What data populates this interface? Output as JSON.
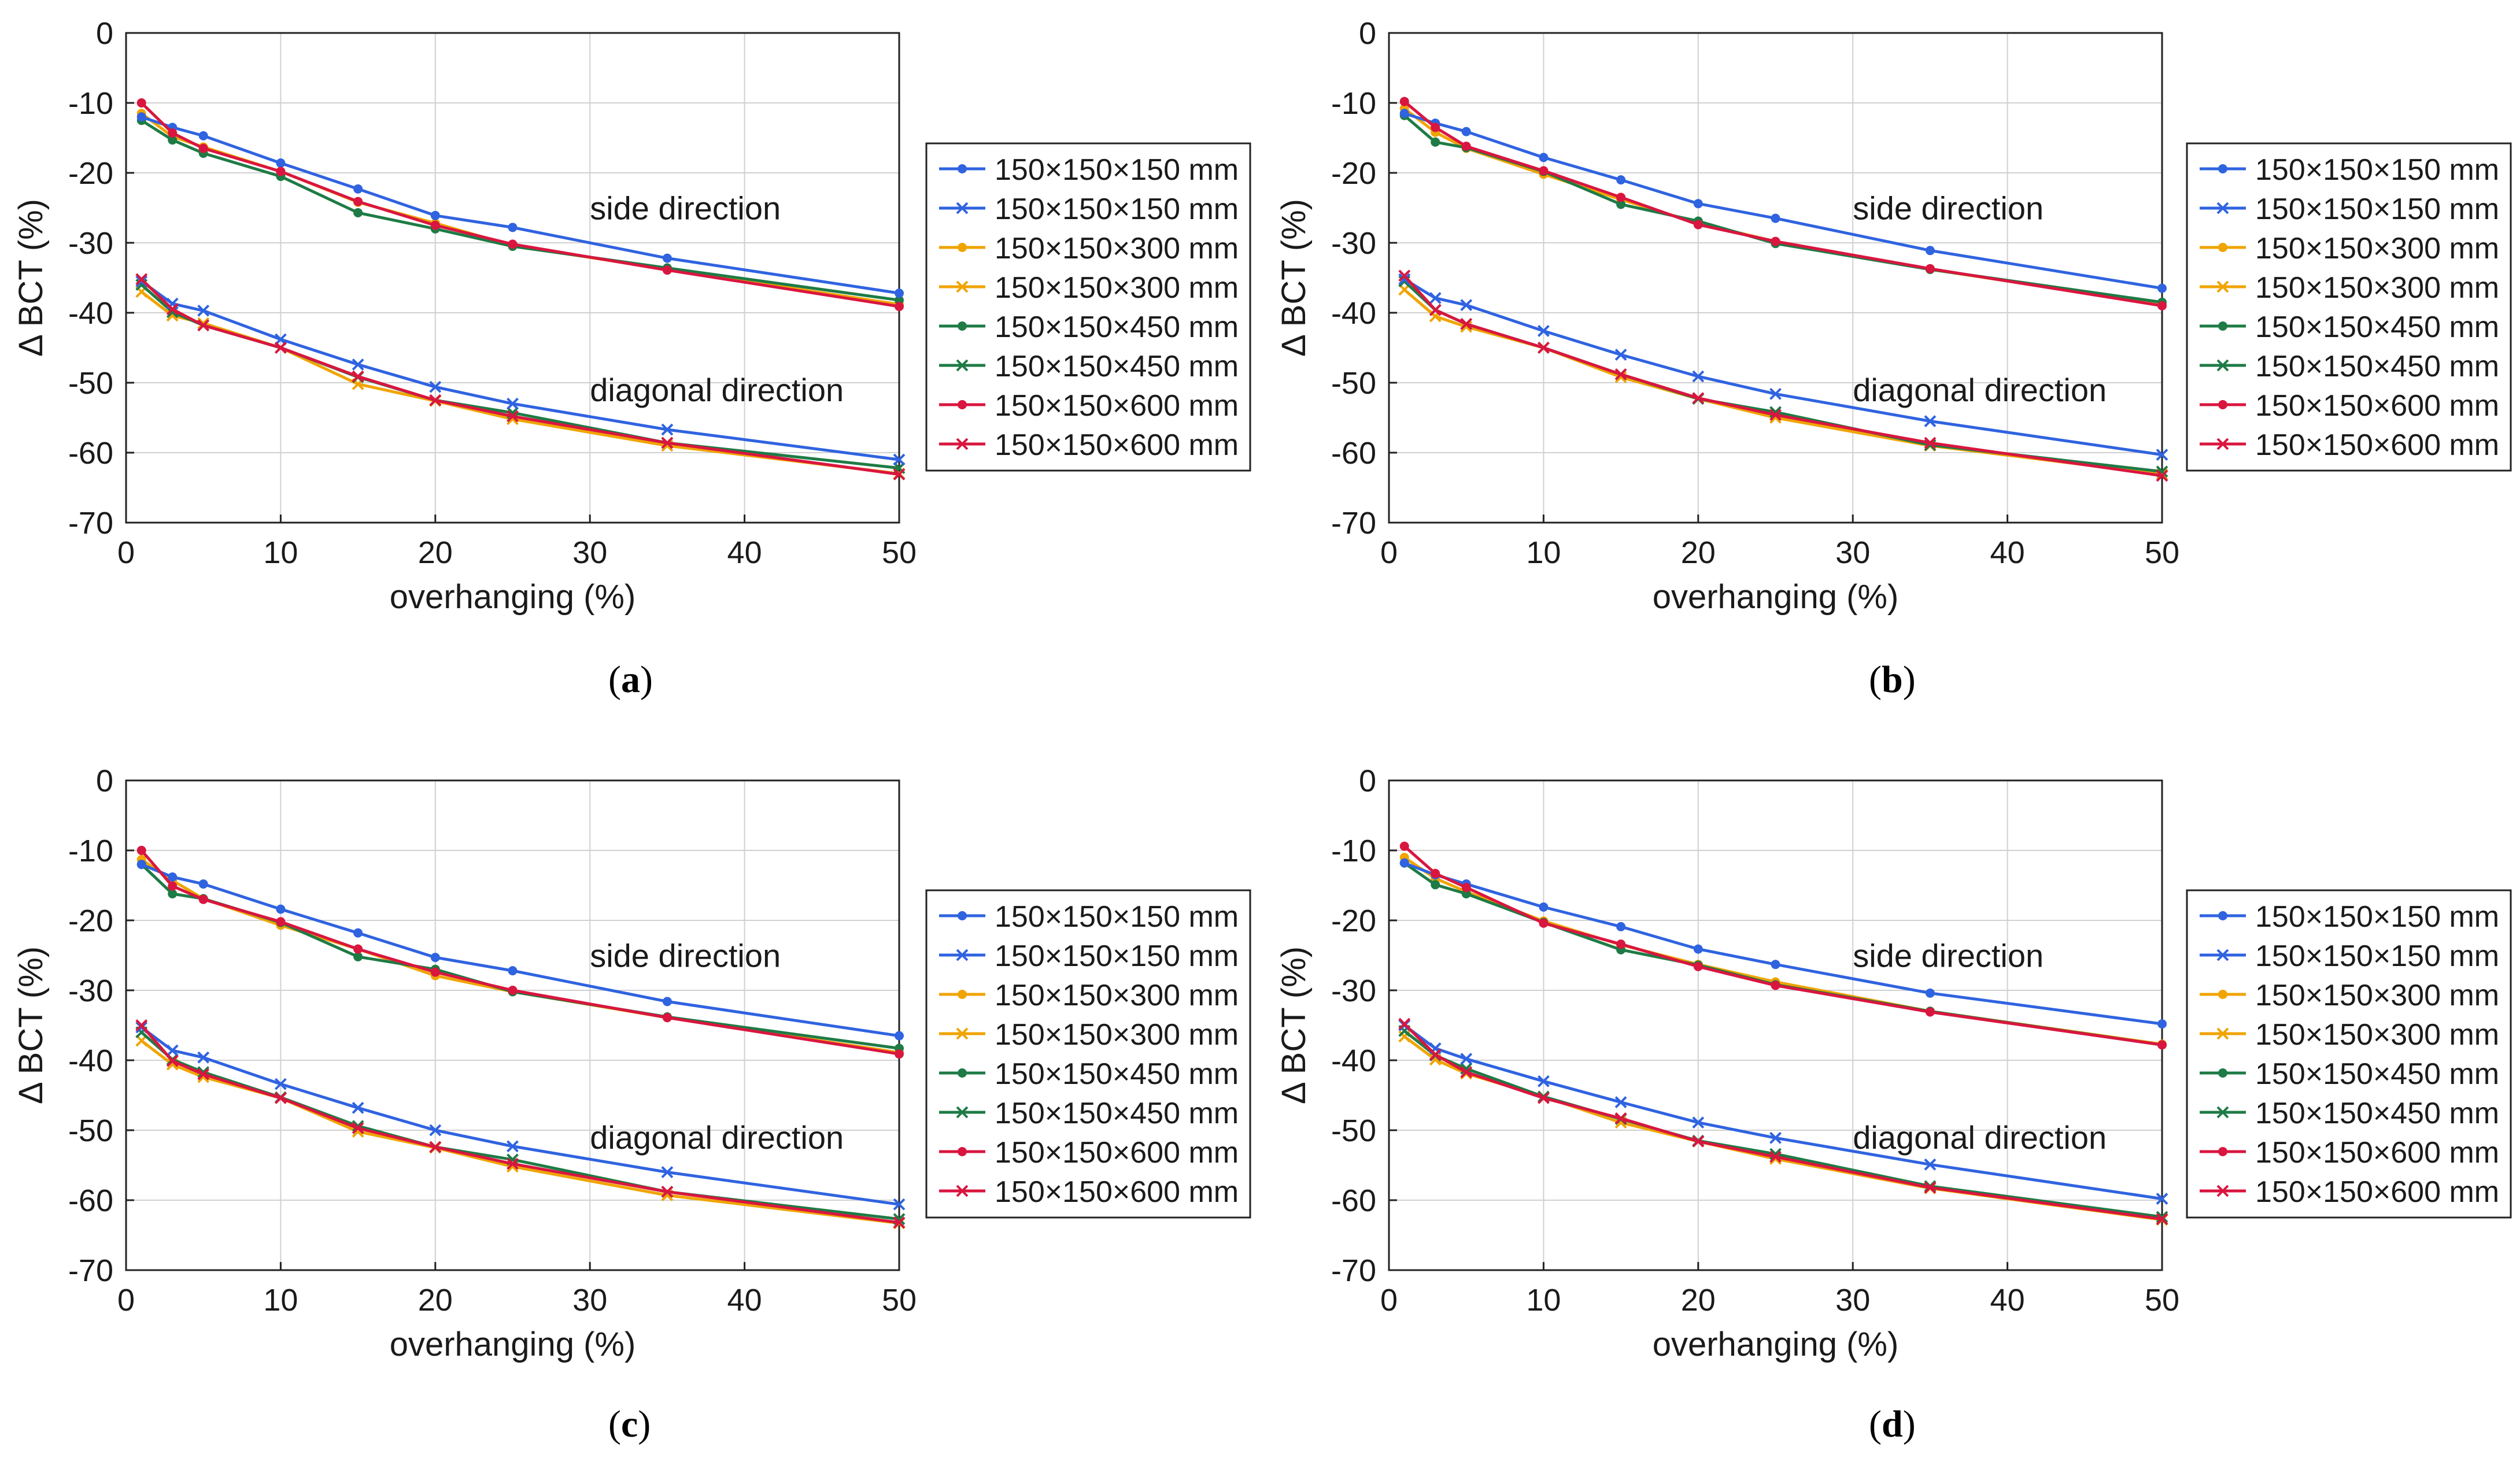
{
  "colors": {
    "blue": "#2f63e0",
    "orange": "#f0a400",
    "green": "#1e7b45",
    "red": "#d9163f",
    "grid": "#d0d0d0",
    "axis": "#222222"
  },
  "legend": [
    {
      "label": "150×150×150 mm",
      "color_key": "blue",
      "marker": "dot"
    },
    {
      "label": "150×150×150 mm",
      "color_key": "blue",
      "marker": "cross"
    },
    {
      "label": "150×150×300 mm",
      "color_key": "orange",
      "marker": "dot"
    },
    {
      "label": "150×150×300 mm",
      "color_key": "orange",
      "marker": "cross"
    },
    {
      "label": "150×150×450 mm",
      "color_key": "green",
      "marker": "dot"
    },
    {
      "label": "150×150×450 mm",
      "color_key": "green",
      "marker": "cross"
    },
    {
      "label": "150×150×600 mm",
      "color_key": "red",
      "marker": "dot"
    },
    {
      "label": "150×150×600 mm",
      "color_key": "red",
      "marker": "cross"
    }
  ],
  "chart_data": [
    {
      "panel": "a",
      "type": "line",
      "xlabel": "overhanging (%)",
      "ylabel": "Δ BCT (%)",
      "xlim": [
        0,
        50
      ],
      "ylim": [
        -70,
        0
      ],
      "xticks": [
        0,
        10,
        20,
        30,
        40,
        50
      ],
      "yticks": [
        0,
        -10,
        -20,
        -30,
        -40,
        -50,
        -60,
        -70
      ],
      "grid": true,
      "annotations": [
        "side direction",
        "diagonal direction"
      ],
      "x": [
        1,
        3,
        5,
        10,
        15,
        20,
        25,
        35,
        50
      ],
      "series": [
        {
          "name": "150×150×150 mm",
          "group": "side",
          "values": [
            -12,
            -13.5,
            -14.7,
            -18.6,
            -22.3,
            -26.1,
            -27.8,
            -32.2,
            -37.2
          ]
        },
        {
          "name": "150×150×150 mm",
          "group": "diagonal",
          "values": [
            -35.5,
            -38.7,
            -39.7,
            -43.8,
            -47.4,
            -50.6,
            -53,
            -56.7,
            -61
          ]
        },
        {
          "name": "150×150×300 mm",
          "group": "side",
          "values": [
            -11.5,
            -14.8,
            -16.3,
            -19.8,
            -24.2,
            -27.2,
            -30.4,
            -33.8,
            -38.8
          ]
        },
        {
          "name": "150×150×300 mm",
          "group": "diagonal",
          "values": [
            -37,
            -40.4,
            -41.5,
            -45,
            -50.2,
            -52.6,
            -55.2,
            -59,
            -63
          ]
        },
        {
          "name": "150×150×450 mm",
          "group": "side",
          "values": [
            -12.5,
            -15.3,
            -17.2,
            -20.5,
            -25.7,
            -28,
            -30.5,
            -33.6,
            -38.2
          ]
        },
        {
          "name": "150×150×450 mm",
          "group": "diagonal",
          "values": [
            -36,
            -39.9,
            -41.8,
            -45,
            -49.2,
            -52.5,
            -54.3,
            -58.6,
            -62.2
          ]
        },
        {
          "name": "150×150×600 mm",
          "group": "side",
          "values": [
            -10,
            -14.3,
            -16.5,
            -19.8,
            -24.1,
            -27.5,
            -30.2,
            -33.9,
            -39.1
          ]
        },
        {
          "name": "150×150×600 mm",
          "group": "diagonal",
          "values": [
            -35.2,
            -39.5,
            -41.8,
            -45,
            -49.1,
            -52.5,
            -54.8,
            -58.6,
            -63.1
          ]
        }
      ]
    },
    {
      "panel": "b",
      "type": "line",
      "xlabel": "overhanging (%)",
      "ylabel": "Δ BCT (%)",
      "xlim": [
        0,
        50
      ],
      "ylim": [
        -70,
        0
      ],
      "xticks": [
        0,
        10,
        20,
        30,
        40,
        50
      ],
      "yticks": [
        0,
        -10,
        -20,
        -30,
        -40,
        -50,
        -60,
        -70
      ],
      "grid": true,
      "annotations": [
        "side direction",
        "diagonal direction"
      ],
      "x": [
        1,
        3,
        5,
        10,
        15,
        20,
        25,
        35,
        50
      ],
      "series": [
        {
          "name": "150×150×150 mm",
          "group": "side",
          "values": [
            -11.5,
            -12.9,
            -14.1,
            -17.8,
            -21,
            -24.4,
            -26.5,
            -31.1,
            -36.5
          ]
        },
        {
          "name": "150×150×150 mm",
          "group": "diagonal",
          "values": [
            -35.2,
            -37.9,
            -38.9,
            -42.6,
            -46,
            -49.1,
            -51.6,
            -55.5,
            -60.3
          ]
        },
        {
          "name": "150×150×300 mm",
          "group": "side",
          "values": [
            -10.8,
            -14.2,
            -16.5,
            -20.2,
            -23.8,
            -27.2,
            -29.8,
            -33.8,
            -38.8
          ]
        },
        {
          "name": "150×150×300 mm",
          "group": "diagonal",
          "values": [
            -36.7,
            -40.5,
            -42,
            -45,
            -49.2,
            -52.3,
            -55,
            -59,
            -63.1
          ]
        },
        {
          "name": "150×150×450 mm",
          "group": "side",
          "values": [
            -11.8,
            -15.6,
            -16.4,
            -19.8,
            -24.5,
            -26.9,
            -30.1,
            -33.8,
            -38.5
          ]
        },
        {
          "name": "150×150×450 mm",
          "group": "diagonal",
          "values": [
            -35.5,
            -39.6,
            -41.6,
            -45,
            -48.8,
            -52.3,
            -54.2,
            -58.9,
            -62.7
          ]
        },
        {
          "name": "150×150×600 mm",
          "group": "side",
          "values": [
            -9.8,
            -13.5,
            -16.2,
            -19.7,
            -23.5,
            -27.4,
            -29.8,
            -33.7,
            -39
          ]
        },
        {
          "name": "150×150×600 mm",
          "group": "diagonal",
          "values": [
            -34.7,
            -39.6,
            -41.6,
            -45,
            -48.8,
            -52.2,
            -54.6,
            -58.6,
            -63.3
          ]
        }
      ]
    },
    {
      "panel": "c",
      "type": "line",
      "xlabel": "overhanging (%)",
      "ylabel": "Δ BCT (%)",
      "xlim": [
        0,
        50
      ],
      "ylim": [
        -70,
        0
      ],
      "xticks": [
        0,
        10,
        20,
        30,
        40,
        50
      ],
      "yticks": [
        0,
        -10,
        -20,
        -30,
        -40,
        -50,
        -60,
        -70
      ],
      "grid": true,
      "annotations": [
        "side direction",
        "diagonal direction"
      ],
      "x": [
        1,
        3,
        5,
        10,
        15,
        20,
        25,
        35,
        50
      ],
      "series": [
        {
          "name": "150×150×150 mm",
          "group": "side",
          "values": [
            -12,
            -13.8,
            -14.8,
            -18.4,
            -21.8,
            -25.3,
            -27.2,
            -31.6,
            -36.5
          ]
        },
        {
          "name": "150×150×150 mm",
          "group": "diagonal",
          "values": [
            -35.3,
            -38.6,
            -39.6,
            -43.4,
            -46.8,
            -50,
            -52.3,
            -56,
            -60.6
          ]
        },
        {
          "name": "150×150×300 mm",
          "group": "side",
          "values": [
            -11.3,
            -14.3,
            -16.9,
            -20.7,
            -24.1,
            -27.9,
            -30.2,
            -33.9,
            -38.9
          ]
        },
        {
          "name": "150×150×300 mm",
          "group": "diagonal",
          "values": [
            -37.2,
            -40.6,
            -42.4,
            -45.4,
            -50.2,
            -52.5,
            -55.2,
            -59.3,
            -63.3
          ]
        },
        {
          "name": "150×150×450 mm",
          "group": "side",
          "values": [
            -12,
            -16.2,
            -16.9,
            -20.3,
            -25.2,
            -27,
            -30.2,
            -33.8,
            -38.3
          ]
        },
        {
          "name": "150×150×450 mm",
          "group": "diagonal",
          "values": [
            -36,
            -39.9,
            -41.7,
            -45.3,
            -49.4,
            -52.4,
            -54.2,
            -58.8,
            -62.7
          ]
        },
        {
          "name": "150×150×600 mm",
          "group": "side",
          "values": [
            -10,
            -15.1,
            -17,
            -20.2,
            -24.1,
            -27.4,
            -30,
            -33.9,
            -39.1
          ]
        },
        {
          "name": "150×150×600 mm",
          "group": "diagonal",
          "values": [
            -35,
            -40.1,
            -42,
            -45.4,
            -49.7,
            -52.4,
            -54.8,
            -58.8,
            -63.2
          ]
        }
      ]
    },
    {
      "panel": "d",
      "type": "line",
      "xlabel": "overhanging (%)",
      "ylabel": "Δ BCT (%)",
      "xlim": [
        0,
        50
      ],
      "ylim": [
        -70,
        0
      ],
      "xticks": [
        0,
        10,
        20,
        30,
        40,
        50
      ],
      "yticks": [
        0,
        -10,
        -20,
        -30,
        -40,
        -50,
        -60,
        -70
      ],
      "grid": true,
      "annotations": [
        "side direction",
        "diagonal direction"
      ],
      "x": [
        1,
        3,
        5,
        10,
        15,
        20,
        25,
        35,
        50
      ],
      "series": [
        {
          "name": "150×150×150 mm",
          "group": "side",
          "values": [
            -11.8,
            -13.5,
            -14.8,
            -18.1,
            -20.9,
            -24.1,
            -26.3,
            -30.4,
            -34.8
          ]
        },
        {
          "name": "150×150×150 mm",
          "group": "diagonal",
          "values": [
            -35,
            -38.3,
            -39.8,
            -43,
            -46,
            -48.9,
            -51.1,
            -54.9,
            -59.8
          ]
        },
        {
          "name": "150×150×300 mm",
          "group": "side",
          "values": [
            -11,
            -14,
            -15.9,
            -20.1,
            -23.5,
            -26.3,
            -28.8,
            -33,
            -37.7
          ]
        },
        {
          "name": "150×150×300 mm",
          "group": "diagonal",
          "values": [
            -36.6,
            -39.9,
            -41.9,
            -45.2,
            -48.9,
            -51.6,
            -54.1,
            -58.3,
            -62.8
          ]
        },
        {
          "name": "150×150×450 mm",
          "group": "side",
          "values": [
            -11.8,
            -14.9,
            -16.2,
            -20.3,
            -24.2,
            -26.4,
            -29.2,
            -33,
            -37.8
          ]
        },
        {
          "name": "150×150×450 mm",
          "group": "diagonal",
          "values": [
            -35.8,
            -39.3,
            -41.2,
            -45.2,
            -48.4,
            -51.5,
            -53.4,
            -58,
            -62.4
          ]
        },
        {
          "name": "150×150×600 mm",
          "group": "side",
          "values": [
            -9.4,
            -13.3,
            -15.3,
            -20.4,
            -23.4,
            -26.6,
            -29.3,
            -33.1,
            -37.8
          ]
        },
        {
          "name": "150×150×600 mm",
          "group": "diagonal",
          "values": [
            -34.8,
            -39.2,
            -41.7,
            -45.4,
            -48.3,
            -51.6,
            -53.8,
            -58.2,
            -62.7
          ]
        }
      ]
    }
  ],
  "captions": {
    "a": {
      "open": "(",
      "letter": "a",
      "close": ")"
    },
    "b": {
      "open": "(",
      "letter": "b",
      "close": ")"
    },
    "c": {
      "open": "(",
      "letter": "c",
      "close": ")"
    },
    "d": {
      "open": "(",
      "letter": "d",
      "close": ")"
    }
  }
}
